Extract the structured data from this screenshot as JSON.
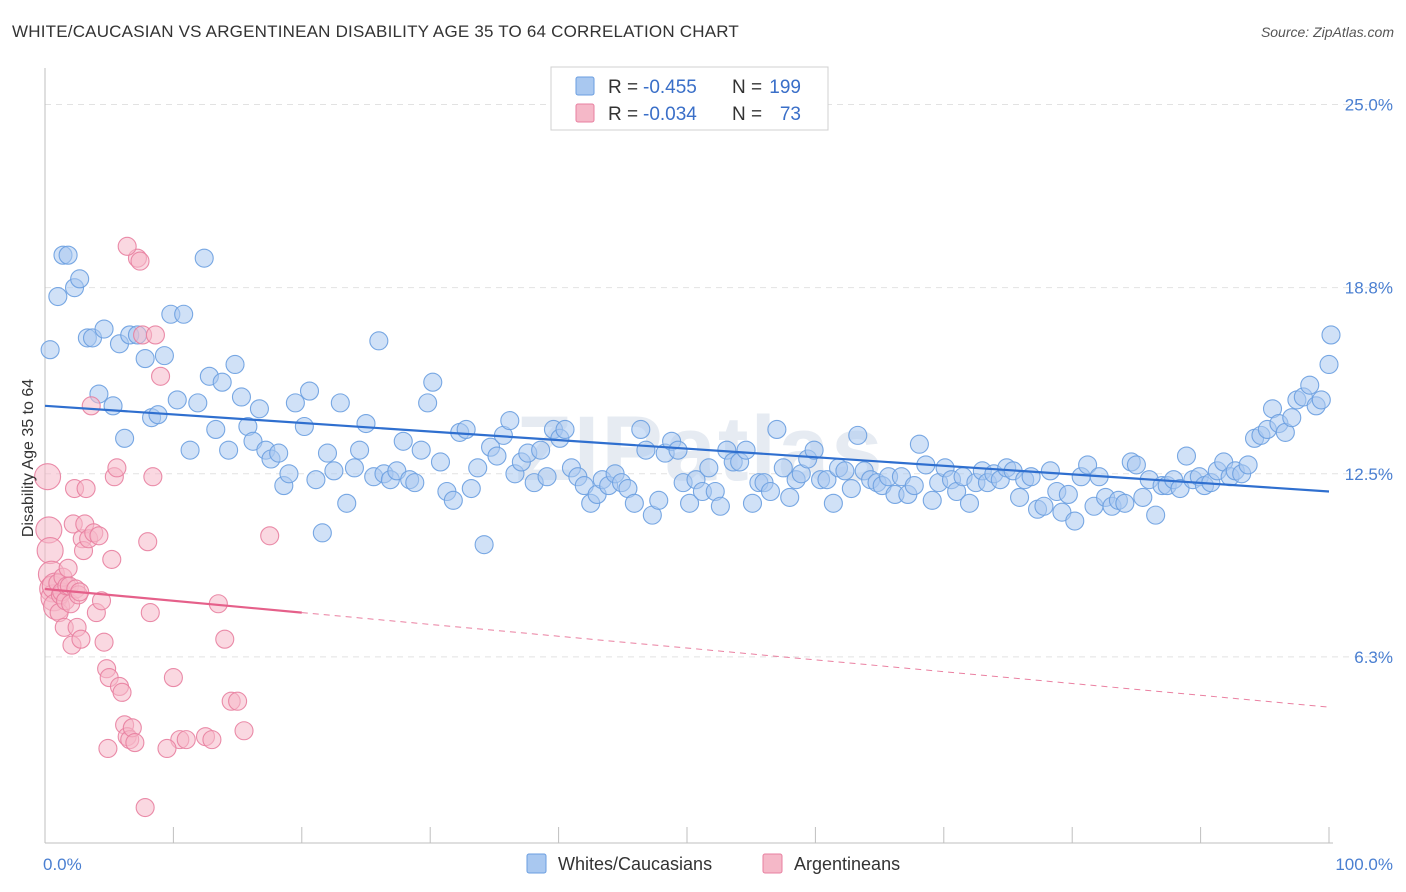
{
  "title": "WHITE/CAUCASIAN VS ARGENTINEAN DISABILITY AGE 35 TO 64 CORRELATION CHART",
  "source": "Source: ZipAtlas.com",
  "watermark": "ZIPatlas",
  "legend": {
    "rows": [
      {
        "r_label": "R =",
        "r_value": "-0.455",
        "n_label": "N =",
        "n_value": "199",
        "color": "#a9c8f0"
      },
      {
        "r_label": "R =",
        "r_value": "-0.034",
        "n_label": "N =",
        "n_value": "73",
        "color": "#f5b8c8"
      }
    ]
  },
  "bottom_legend": [
    "Whites/Caucasians",
    "Argentineans"
  ],
  "chart_data": {
    "type": "scatter",
    "title": "WHITE/CAUCASIAN VS ARGENTINEAN DISABILITY AGE 35 TO 64 CORRELATION CHART",
    "xlabel": "",
    "ylabel": "Disability Age 35 to 64",
    "xlim": [
      0,
      100
    ],
    "ylim": [
      0,
      26
    ],
    "x_tick_labels": [
      "0.0%",
      "100.0%"
    ],
    "y_ticks": [
      6.3,
      12.5,
      18.8,
      25.0
    ],
    "y_tick_labels": [
      "6.3%",
      "12.5%",
      "18.8%",
      "25.0%"
    ],
    "grid": true,
    "legend_position": "top-center",
    "series": [
      {
        "name": "Whites/Caucasians",
        "color": "#6a9ee0",
        "fill": "#a9c8f0",
        "r": -0.455,
        "n": 199,
        "trend": {
          "x": [
            0,
            100
          ],
          "y": [
            14.8,
            11.9
          ],
          "dashed_from": null
        },
        "points": [
          [
            0.4,
            16.7
          ],
          [
            1.0,
            18.5
          ],
          [
            1.4,
            19.9
          ],
          [
            1.8,
            19.9
          ],
          [
            2.3,
            18.8
          ],
          [
            2.7,
            19.1
          ],
          [
            3.3,
            17.1
          ],
          [
            3.7,
            17.1
          ],
          [
            4.2,
            15.2
          ],
          [
            4.6,
            17.4
          ],
          [
            5.3,
            14.8
          ],
          [
            5.8,
            16.9
          ],
          [
            6.2,
            13.7
          ],
          [
            6.6,
            17.2
          ],
          [
            7.2,
            17.2
          ],
          [
            7.8,
            16.4
          ],
          [
            8.3,
            14.4
          ],
          [
            8.8,
            14.5
          ],
          [
            9.3,
            16.5
          ],
          [
            9.8,
            17.9
          ],
          [
            10.3,
            15.0
          ],
          [
            10.8,
            17.9
          ],
          [
            11.3,
            13.3
          ],
          [
            11.9,
            14.9
          ],
          [
            12.4,
            19.8
          ],
          [
            12.8,
            15.8
          ],
          [
            13.3,
            14.0
          ],
          [
            13.8,
            15.6
          ],
          [
            14.3,
            13.3
          ],
          [
            14.8,
            16.2
          ],
          [
            15.3,
            15.1
          ],
          [
            15.8,
            14.1
          ],
          [
            16.2,
            13.6
          ],
          [
            16.7,
            14.7
          ],
          [
            17.2,
            13.3
          ],
          [
            17.6,
            13.0
          ],
          [
            18.2,
            13.2
          ],
          [
            18.6,
            12.1
          ],
          [
            19.0,
            12.5
          ],
          [
            19.5,
            14.9
          ],
          [
            20.2,
            14.1
          ],
          [
            20.6,
            15.3
          ],
          [
            21.1,
            12.3
          ],
          [
            21.6,
            10.5
          ],
          [
            22.0,
            13.2
          ],
          [
            22.5,
            12.6
          ],
          [
            23.0,
            14.9
          ],
          [
            23.5,
            11.5
          ],
          [
            24.1,
            12.7
          ],
          [
            24.5,
            13.3
          ],
          [
            25.0,
            14.2
          ],
          [
            25.6,
            12.4
          ],
          [
            26.0,
            17.0
          ],
          [
            26.4,
            12.5
          ],
          [
            26.9,
            12.3
          ],
          [
            27.4,
            12.6
          ],
          [
            27.9,
            13.6
          ],
          [
            28.4,
            12.3
          ],
          [
            28.8,
            12.2
          ],
          [
            29.3,
            13.3
          ],
          [
            29.8,
            14.9
          ],
          [
            30.2,
            15.6
          ],
          [
            30.8,
            12.9
          ],
          [
            31.3,
            11.9
          ],
          [
            31.8,
            11.6
          ],
          [
            32.3,
            13.9
          ],
          [
            32.8,
            14.0
          ],
          [
            33.2,
            12.0
          ],
          [
            33.7,
            12.7
          ],
          [
            34.2,
            10.1
          ],
          [
            34.7,
            13.4
          ],
          [
            35.2,
            13.1
          ],
          [
            35.7,
            13.8
          ],
          [
            36.2,
            14.3
          ],
          [
            36.6,
            12.5
          ],
          [
            37.1,
            12.9
          ],
          [
            37.6,
            13.2
          ],
          [
            38.1,
            12.2
          ],
          [
            38.6,
            13.3
          ],
          [
            39.1,
            12.4
          ],
          [
            39.6,
            14.0
          ],
          [
            40.1,
            13.7
          ],
          [
            40.5,
            14.0
          ],
          [
            41.0,
            12.7
          ],
          [
            41.5,
            12.4
          ],
          [
            42.0,
            12.1
          ],
          [
            42.5,
            11.5
          ],
          [
            43.0,
            11.8
          ],
          [
            43.4,
            12.3
          ],
          [
            43.9,
            12.1
          ],
          [
            44.4,
            12.5
          ],
          [
            44.9,
            12.2
          ],
          [
            45.4,
            12.0
          ],
          [
            45.9,
            11.5
          ],
          [
            46.4,
            14.0
          ],
          [
            46.8,
            13.3
          ],
          [
            47.3,
            11.1
          ],
          [
            47.8,
            11.6
          ],
          [
            48.3,
            13.2
          ],
          [
            48.8,
            13.6
          ],
          [
            49.3,
            13.3
          ],
          [
            49.7,
            12.2
          ],
          [
            50.2,
            11.5
          ],
          [
            50.7,
            12.3
          ],
          [
            51.2,
            11.9
          ],
          [
            51.7,
            12.7
          ],
          [
            52.2,
            11.9
          ],
          [
            52.6,
            11.4
          ],
          [
            53.1,
            13.3
          ],
          [
            53.6,
            12.9
          ],
          [
            54.1,
            12.9
          ],
          [
            54.6,
            13.3
          ],
          [
            55.1,
            11.5
          ],
          [
            55.6,
            12.2
          ],
          [
            56.0,
            12.2
          ],
          [
            56.5,
            11.9
          ],
          [
            57.0,
            14.0
          ],
          [
            57.5,
            12.7
          ],
          [
            58.0,
            11.7
          ],
          [
            58.5,
            12.3
          ],
          [
            58.9,
            12.5
          ],
          [
            59.4,
            13.0
          ],
          [
            59.9,
            13.3
          ],
          [
            60.4,
            12.3
          ],
          [
            60.9,
            12.3
          ],
          [
            61.4,
            11.5
          ],
          [
            61.8,
            12.7
          ],
          [
            62.3,
            12.6
          ],
          [
            62.8,
            12.0
          ],
          [
            63.3,
            13.8
          ],
          [
            63.8,
            12.6
          ],
          [
            64.3,
            12.3
          ],
          [
            64.8,
            12.2
          ],
          [
            65.2,
            12.1
          ],
          [
            65.7,
            12.4
          ],
          [
            66.2,
            11.8
          ],
          [
            66.7,
            12.4
          ],
          [
            67.2,
            11.8
          ],
          [
            67.7,
            12.1
          ],
          [
            68.1,
            13.5
          ],
          [
            68.6,
            12.8
          ],
          [
            69.1,
            11.6
          ],
          [
            69.6,
            12.2
          ],
          [
            70.1,
            12.7
          ],
          [
            70.6,
            12.3
          ],
          [
            71.0,
            11.9
          ],
          [
            71.5,
            12.4
          ],
          [
            72.0,
            11.5
          ],
          [
            72.5,
            12.2
          ],
          [
            73.0,
            12.6
          ],
          [
            73.4,
            12.2
          ],
          [
            73.9,
            12.5
          ],
          [
            74.4,
            12.3
          ],
          [
            74.9,
            12.7
          ],
          [
            75.4,
            12.6
          ],
          [
            75.9,
            11.7
          ],
          [
            76.3,
            12.3
          ],
          [
            76.8,
            12.4
          ],
          [
            77.3,
            11.3
          ],
          [
            77.8,
            11.4
          ],
          [
            78.3,
            12.6
          ],
          [
            78.8,
            11.9
          ],
          [
            79.2,
            11.2
          ],
          [
            79.7,
            11.8
          ],
          [
            80.2,
            10.9
          ],
          [
            80.7,
            12.4
          ],
          [
            81.2,
            12.8
          ],
          [
            81.7,
            11.4
          ],
          [
            82.1,
            12.4
          ],
          [
            82.6,
            11.7
          ],
          [
            83.1,
            11.4
          ],
          [
            83.6,
            11.6
          ],
          [
            84.1,
            11.5
          ],
          [
            84.6,
            12.9
          ],
          [
            85.0,
            12.8
          ],
          [
            85.5,
            11.7
          ],
          [
            86.0,
            12.3
          ],
          [
            86.5,
            11.1
          ],
          [
            87.0,
            12.1
          ],
          [
            87.4,
            12.1
          ],
          [
            87.9,
            12.3
          ],
          [
            88.4,
            12.0
          ],
          [
            88.9,
            13.1
          ],
          [
            89.4,
            12.3
          ],
          [
            89.9,
            12.4
          ],
          [
            90.3,
            12.1
          ],
          [
            90.8,
            12.2
          ],
          [
            91.3,
            12.6
          ],
          [
            91.8,
            12.9
          ],
          [
            92.3,
            12.4
          ],
          [
            92.7,
            12.6
          ],
          [
            93.2,
            12.5
          ],
          [
            93.7,
            12.8
          ],
          [
            94.2,
            13.7
          ],
          [
            94.7,
            13.8
          ],
          [
            95.2,
            14.0
          ],
          [
            95.6,
            14.7
          ],
          [
            96.1,
            14.2
          ],
          [
            96.6,
            13.9
          ],
          [
            97.1,
            14.4
          ],
          [
            97.5,
            15.0
          ],
          [
            98.0,
            15.1
          ],
          [
            98.5,
            15.5
          ],
          [
            99.0,
            14.8
          ],
          [
            99.4,
            15.0
          ],
          [
            100.0,
            16.2
          ],
          [
            100.5,
            17.2
          ]
        ]
      },
      {
        "name": "Argentineans",
        "color": "#e87fa0",
        "fill": "#f5b8c8",
        "r": -0.034,
        "n": 73,
        "trend": {
          "x": [
            0,
            100
          ],
          "y": [
            8.6,
            4.6
          ],
          "dashed_from": 20
        },
        "points": [
          [
            0.2,
            12.4
          ],
          [
            0.3,
            10.6
          ],
          [
            0.4,
            9.9
          ],
          [
            0.5,
            9.1
          ],
          [
            0.6,
            8.6
          ],
          [
            0.7,
            8.3
          ],
          [
            0.8,
            8.7
          ],
          [
            0.9,
            8.0
          ],
          [
            1.0,
            8.8
          ],
          [
            1.1,
            7.8
          ],
          [
            1.2,
            8.4
          ],
          [
            1.3,
            8.5
          ],
          [
            1.4,
            9.0
          ],
          [
            1.5,
            7.3
          ],
          [
            1.6,
            8.2
          ],
          [
            1.7,
            8.7
          ],
          [
            1.8,
            9.3
          ],
          [
            1.9,
            8.7
          ],
          [
            2.0,
            8.1
          ],
          [
            2.1,
            6.7
          ],
          [
            2.2,
            10.8
          ],
          [
            2.3,
            12.0
          ],
          [
            2.4,
            8.6
          ],
          [
            2.5,
            7.3
          ],
          [
            2.6,
            8.4
          ],
          [
            2.7,
            8.5
          ],
          [
            2.8,
            6.9
          ],
          [
            2.9,
            10.3
          ],
          [
            3.0,
            9.9
          ],
          [
            3.1,
            10.8
          ],
          [
            3.2,
            12.0
          ],
          [
            3.4,
            10.3
          ],
          [
            3.6,
            14.8
          ],
          [
            3.8,
            10.5
          ],
          [
            4.0,
            7.8
          ],
          [
            4.2,
            10.4
          ],
          [
            4.4,
            8.2
          ],
          [
            4.6,
            6.8
          ],
          [
            4.8,
            5.9
          ],
          [
            5.0,
            5.6
          ],
          [
            5.2,
            9.6
          ],
          [
            5.4,
            12.4
          ],
          [
            5.6,
            12.7
          ],
          [
            5.8,
            5.3
          ],
          [
            6.0,
            5.1
          ],
          [
            6.2,
            4.0
          ],
          [
            6.4,
            3.6
          ],
          [
            6.6,
            3.5
          ],
          [
            6.8,
            3.9
          ],
          [
            7.0,
            3.4
          ],
          [
            7.2,
            19.8
          ],
          [
            7.4,
            19.7
          ],
          [
            7.6,
            17.2
          ],
          [
            7.8,
            1.2
          ],
          [
            8.0,
            10.2
          ],
          [
            8.2,
            7.8
          ],
          [
            8.4,
            12.4
          ],
          [
            8.6,
            17.2
          ],
          [
            9.0,
            15.8
          ],
          [
            10.0,
            5.6
          ],
          [
            10.5,
            3.5
          ],
          [
            11.0,
            3.5
          ],
          [
            12.5,
            3.6
          ],
          [
            13.0,
            3.5
          ],
          [
            13.5,
            8.1
          ],
          [
            14.0,
            6.9
          ],
          [
            14.5,
            4.8
          ],
          [
            15.0,
            4.8
          ],
          [
            15.5,
            3.8
          ],
          [
            6.4,
            20.2
          ],
          [
            9.5,
            3.2
          ],
          [
            17.5,
            10.4
          ],
          [
            4.9,
            3.2
          ]
        ]
      }
    ]
  }
}
